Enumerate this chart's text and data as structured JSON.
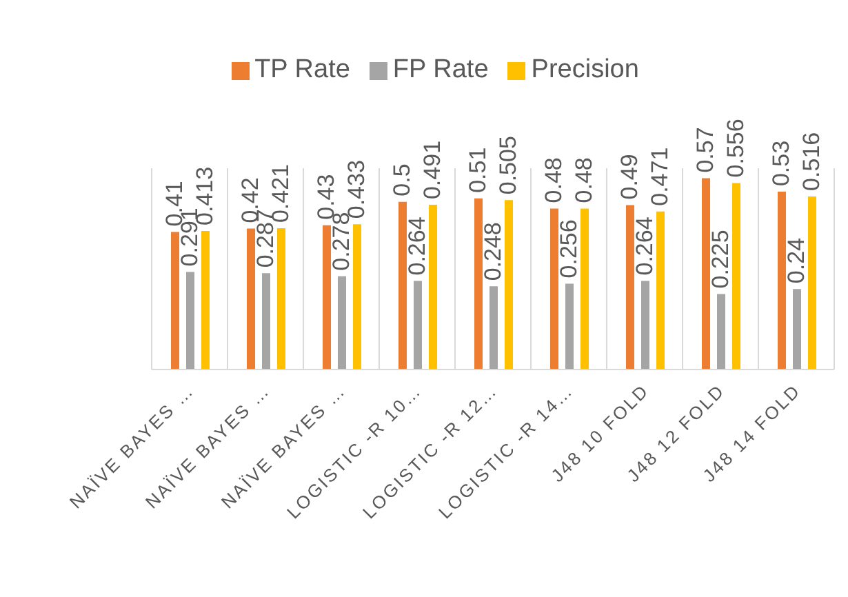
{
  "chart_data": {
    "type": "bar",
    "categories": [
      "NAÏVE BAYES …",
      "NAÏVE BAYES …",
      "NAÏVE BAYES …",
      "LOGISTIC -R 10…",
      "LOGISTIC -R 12…",
      "LOGISTIC -R 14…",
      "J48 10 FOLD",
      "J48 12 FOLD",
      "J48 14 FOLD"
    ],
    "series": [
      {
        "name": "TP Rate",
        "color": "#ed7d31",
        "values": [
          0.41,
          0.42,
          0.43,
          0.5,
          0.51,
          0.48,
          0.49,
          0.57,
          0.53
        ]
      },
      {
        "name": "FP Rate",
        "color": "#a5a5a5",
        "values": [
          0.291,
          0.287,
          0.278,
          0.264,
          0.248,
          0.256,
          0.264,
          0.225,
          0.24
        ]
      },
      {
        "name": "Precision",
        "color": "#ffc000",
        "values": [
          0.413,
          0.421,
          0.433,
          0.491,
          0.505,
          0.48,
          0.471,
          0.556,
          0.516
        ]
      }
    ],
    "ylim": [
      0,
      0.6
    ],
    "tick_labels": "x",
    "grid": "x",
    "legend": "top",
    "data_labels": true
  }
}
